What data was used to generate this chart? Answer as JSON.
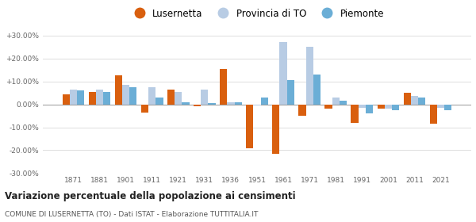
{
  "years": [
    1871,
    1881,
    1901,
    1911,
    1921,
    1931,
    1936,
    1951,
    1961,
    1971,
    1981,
    1991,
    2001,
    2011,
    2021
  ],
  "lusernetta": [
    4.5,
    5.5,
    12.5,
    -3.5,
    6.5,
    -1.0,
    15.5,
    -19.0,
    -21.5,
    -5.0,
    -2.0,
    -8.0,
    -2.0,
    5.0,
    -8.5
  ],
  "provincia_to": [
    6.5,
    6.5,
    8.5,
    7.5,
    5.5,
    6.5,
    1.0,
    -0.5,
    27.0,
    25.0,
    3.0,
    -1.5,
    -2.0,
    3.5,
    -1.5
  ],
  "piemonte": [
    6.0,
    5.5,
    7.5,
    3.0,
    1.0,
    0.5,
    1.0,
    3.0,
    10.5,
    13.0,
    1.5,
    -4.0,
    -2.5,
    3.0,
    -2.5
  ],
  "color_lusernetta": "#d95f0e",
  "color_provincia": "#b8cce4",
  "color_piemonte": "#6baed6",
  "title": "Variazione percentuale della popolazione ai censimenti",
  "subtitle": "COMUNE DI LUSERNETTA (TO) - Dati ISTAT - Elaborazione TUTTITALIA.IT",
  "ylim": [
    -30,
    30
  ],
  "yticks": [
    -30,
    -20,
    -10,
    0,
    10,
    20,
    30
  ],
  "ytick_labels": [
    "-30.00%",
    "-20.00%",
    "-10.00%",
    "0.00%",
    "+10.00%",
    "+20.00%",
    "+30.00%"
  ],
  "legend_labels": [
    "Lusernetta",
    "Provincia di TO",
    "Piemonte"
  ],
  "background_color": "#ffffff",
  "grid_color": "#dddddd",
  "bar_width": 0.28
}
